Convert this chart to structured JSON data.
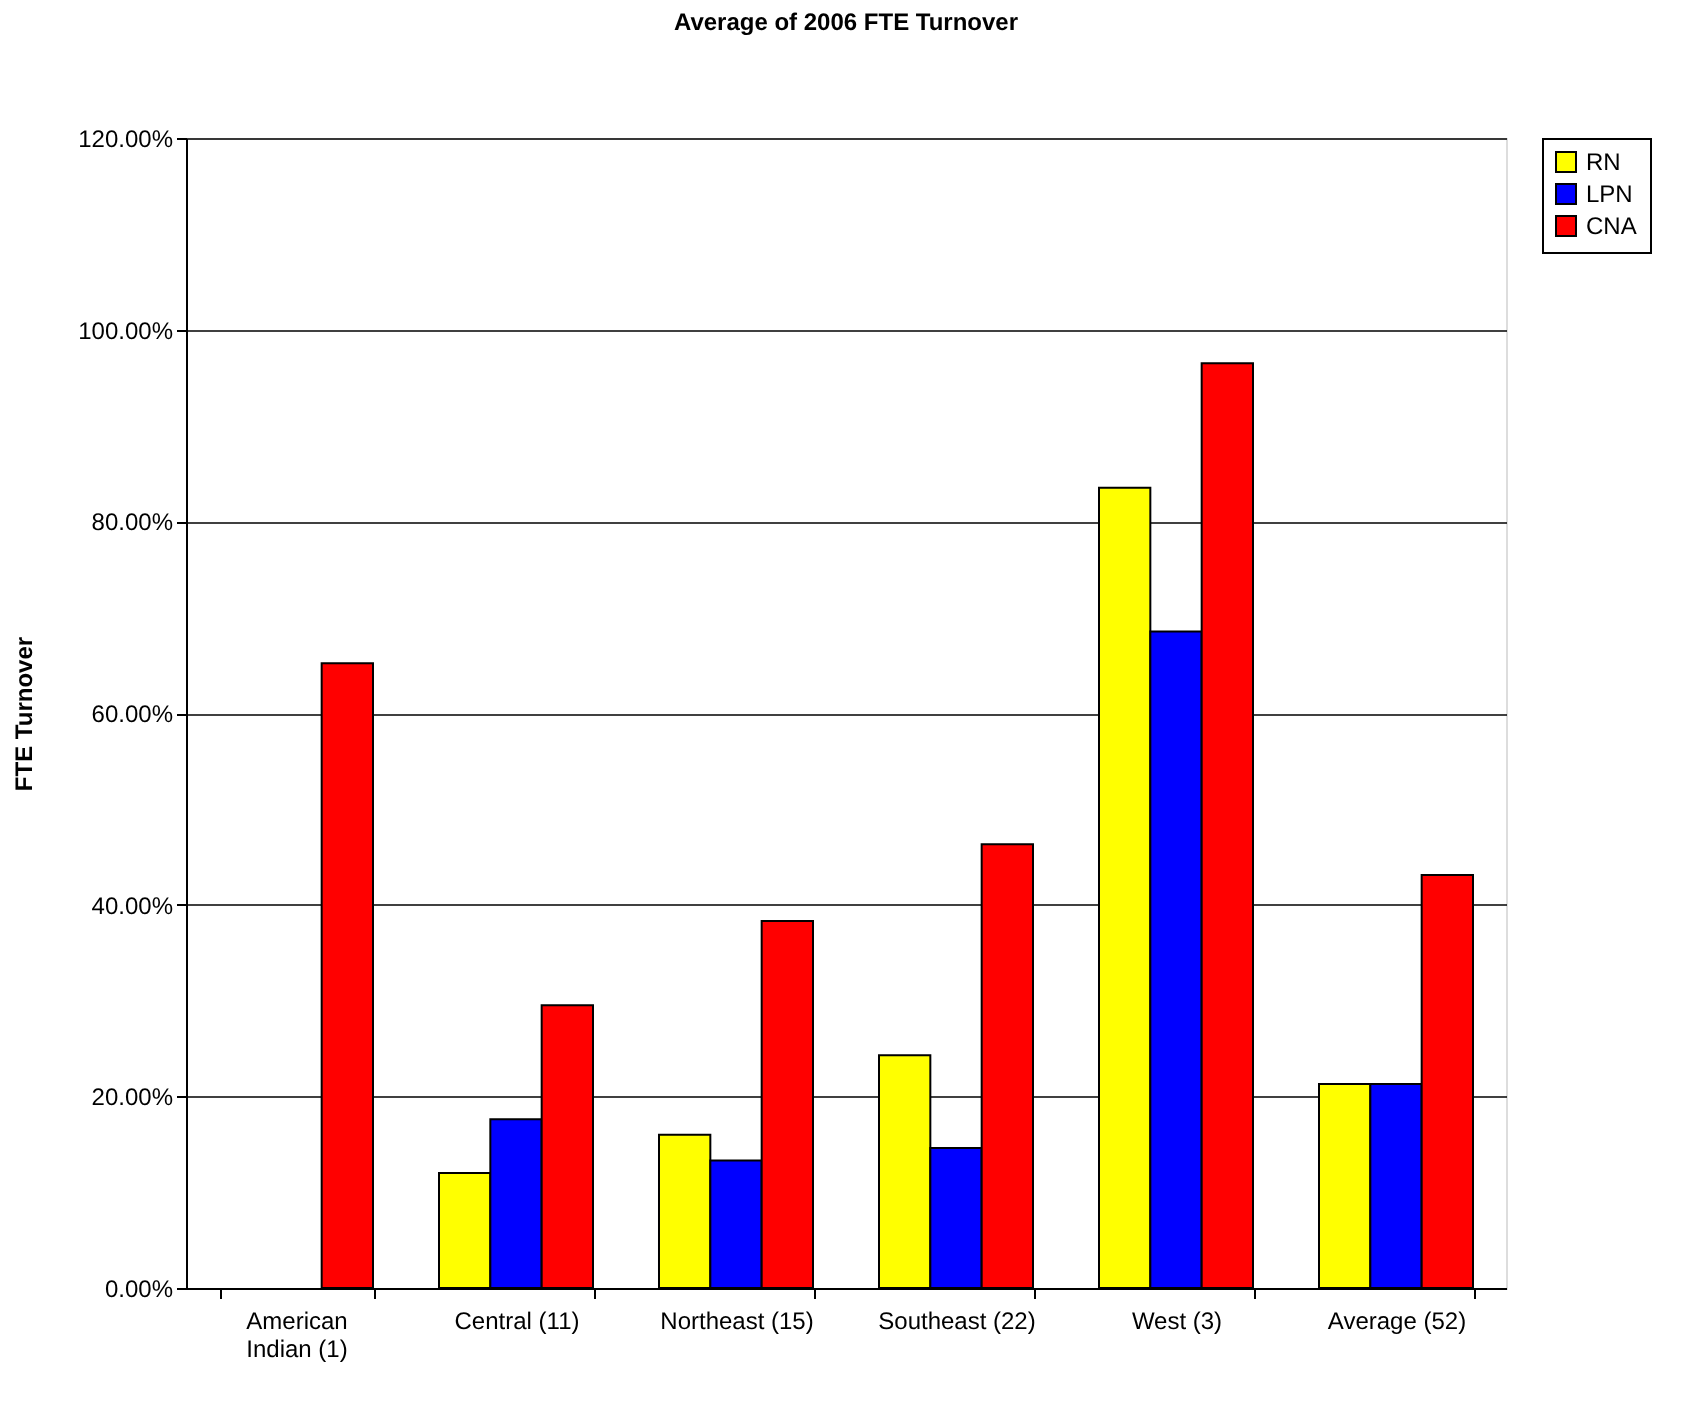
{
  "chart_data": {
    "type": "bar",
    "title": "Average of 2006 FTE Turnover",
    "ylabel": "FTE Turnover",
    "categories": [
      "American Indian (1)",
      "Central (11)",
      "Northeast (15)",
      "Southeast (22)",
      "West (3)",
      "Average (52)"
    ],
    "series": [
      {
        "name": "RN",
        "color": "#ffff00",
        "values": [
          null,
          12.0,
          16.0,
          24.3,
          83.5,
          21.3
        ]
      },
      {
        "name": "LPN",
        "color": "#0000ff",
        "values": [
          null,
          17.6,
          13.3,
          14.6,
          68.5,
          21.3
        ]
      },
      {
        "name": "CNA",
        "color": "#ff0000",
        "values": [
          65.2,
          29.5,
          38.3,
          46.3,
          96.5,
          43.1
        ]
      }
    ],
    "ylim": [
      0,
      120
    ],
    "yticks": [
      {
        "value": 0,
        "label": "0.00%"
      },
      {
        "value": 20,
        "label": "20.00%"
      },
      {
        "value": 40,
        "label": "40.00%"
      },
      {
        "value": 60,
        "label": "60.00%"
      },
      {
        "value": 80,
        "label": "80.00%"
      },
      {
        "value": 100,
        "label": "100.00%"
      },
      {
        "value": 120,
        "label": "120.00%"
      }
    ],
    "grid": "y",
    "legend": "right"
  }
}
